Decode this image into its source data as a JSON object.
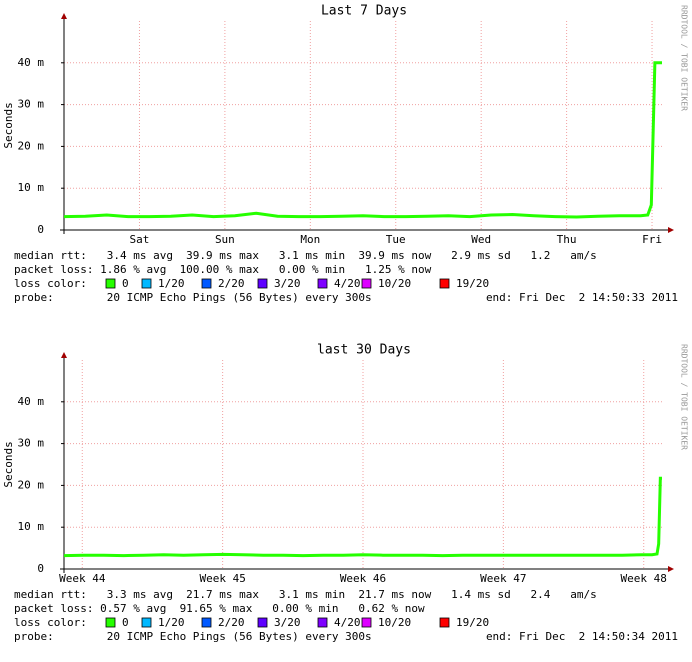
{
  "chart_data": [
    {
      "type": "line",
      "title": "Last 7 Days",
      "y_label": "Seconds",
      "watermark": "RRDTOOL / TOBI OETIKER",
      "x": [
        0,
        6,
        12,
        18,
        24,
        30,
        36,
        42,
        48,
        54,
        60,
        66,
        72,
        78,
        84,
        90,
        96,
        102,
        108,
        114,
        120,
        126,
        132,
        138,
        144,
        150,
        156,
        162,
        164,
        165,
        166,
        167,
        168
      ],
      "values": [
        0.0032,
        0.0033,
        0.0036,
        0.0032,
        0.0032,
        0.0033,
        0.0036,
        0.0032,
        0.0034,
        0.004,
        0.0033,
        0.0032,
        0.0032,
        0.0033,
        0.0034,
        0.0032,
        0.0032,
        0.0033,
        0.0034,
        0.0032,
        0.0036,
        0.0037,
        0.0034,
        0.0032,
        0.0031,
        0.0033,
        0.0034,
        0.0034,
        0.0036,
        0.006,
        0.04,
        0.04,
        0.04
      ],
      "color": "#26ff00",
      "xlim": [
        0,
        168
      ],
      "ylim": [
        0,
        0.05
      ],
      "xticks": [
        {
          "value": 21.2,
          "label": "Sat"
        },
        {
          "value": 45.2,
          "label": "Sun"
        },
        {
          "value": 69.2,
          "label": "Mon"
        },
        {
          "value": 93.2,
          "label": "Tue"
        },
        {
          "value": 117.2,
          "label": "Wed"
        },
        {
          "value": 141.2,
          "label": "Thu"
        },
        {
          "value": 165.2,
          "label": "Fri"
        }
      ],
      "yticks": [
        0,
        {
          "value": 0.01,
          "label": "10 m"
        },
        {
          "value": 0.02,
          "label": "20 m"
        },
        {
          "value": 0.03,
          "label": "30 m"
        },
        {
          "value": 0.04,
          "label": "40 m"
        }
      ],
      "grid": true,
      "stats": [
        "median rtt:   3.4 ms avg  39.9 ms max   3.1 ms min  39.9 ms now   2.9 ms sd   1.2   am/s",
        "packet loss: 1.86 % avg  100.00 % max   0.00 % min   1.25 % now"
      ],
      "loss_label": "loss color:",
      "loss_colors": [
        {
          "label": "0",
          "color": "#26ff00"
        },
        {
          "label": "1/20",
          "color": "#00b8ff"
        },
        {
          "label": "2/20",
          "color": "#0059ff"
        },
        {
          "label": "3/20",
          "color": "#5e00ff"
        },
        {
          "label": "4/20",
          "color": "#7e00ff"
        },
        {
          "label": "10/20",
          "color": "#dd00ff"
        },
        {
          "label": "19/20",
          "color": "#ff0000"
        }
      ],
      "probe": "probe:        20 ICMP Echo Pings (56 Bytes) every 300s",
      "end": "end: Fri Dec  2 14:50:33 2011"
    },
    {
      "type": "line",
      "title": "last 30 Days",
      "y_label": "Seconds",
      "watermark": "RRDTOOL / TOBI OETIKER",
      "x": [
        0,
        24,
        48,
        72,
        96,
        120,
        144,
        168,
        192,
        216,
        240,
        264,
        288,
        312,
        336,
        360,
        384,
        408,
        432,
        456,
        480,
        504,
        528,
        552,
        576,
        600,
        624,
        648,
        672,
        696,
        708,
        714,
        716,
        718,
        720
      ],
      "values": [
        0.0032,
        0.0033,
        0.0033,
        0.0032,
        0.0033,
        0.0034,
        0.0033,
        0.0034,
        0.0035,
        0.0034,
        0.0033,
        0.0033,
        0.0032,
        0.0033,
        0.0033,
        0.0034,
        0.0033,
        0.0033,
        0.0033,
        0.0032,
        0.0033,
        0.0033,
        0.0033,
        0.0033,
        0.0033,
        0.0033,
        0.0033,
        0.0033,
        0.0033,
        0.0034,
        0.0034,
        0.0036,
        0.006,
        0.0217,
        0.0217
      ],
      "color": "#26ff00",
      "xlim": [
        0,
        720
      ],
      "ylim": [
        0,
        0.05
      ],
      "xticks": [
        {
          "value": 22,
          "label": "Week 44"
        },
        {
          "value": 191,
          "label": "Week 45"
        },
        {
          "value": 360,
          "label": "Week 46"
        },
        {
          "value": 529,
          "label": "Week 47"
        },
        {
          "value": 698,
          "label": "Week 48"
        }
      ],
      "yticks": [
        0,
        {
          "value": 0.01,
          "label": "10 m"
        },
        {
          "value": 0.02,
          "label": "20 m"
        },
        {
          "value": 0.03,
          "label": "30 m"
        },
        {
          "value": 0.04,
          "label": "40 m"
        }
      ],
      "grid": true,
      "stats": [
        "median rtt:   3.3 ms avg  21.7 ms max   3.1 ms min  21.7 ms now   1.4 ms sd   2.4   am/s",
        "packet loss: 0.57 % avg  91.65 % max   0.00 % min   0.62 % now"
      ],
      "loss_label": "loss color:",
      "loss_colors": [
        {
          "label": "0",
          "color": "#26ff00"
        },
        {
          "label": "1/20",
          "color": "#00b8ff"
        },
        {
          "label": "2/20",
          "color": "#0059ff"
        },
        {
          "label": "3/20",
          "color": "#5e00ff"
        },
        {
          "label": "4/20",
          "color": "#7e00ff"
        },
        {
          "label": "10/20",
          "color": "#dd00ff"
        },
        {
          "label": "19/20",
          "color": "#ff0000"
        }
      ],
      "probe": "probe:        20 ICMP Echo Pings (56 Bytes) every 300s",
      "end": "end: Fri Dec  2 14:50:34 2011"
    }
  ]
}
